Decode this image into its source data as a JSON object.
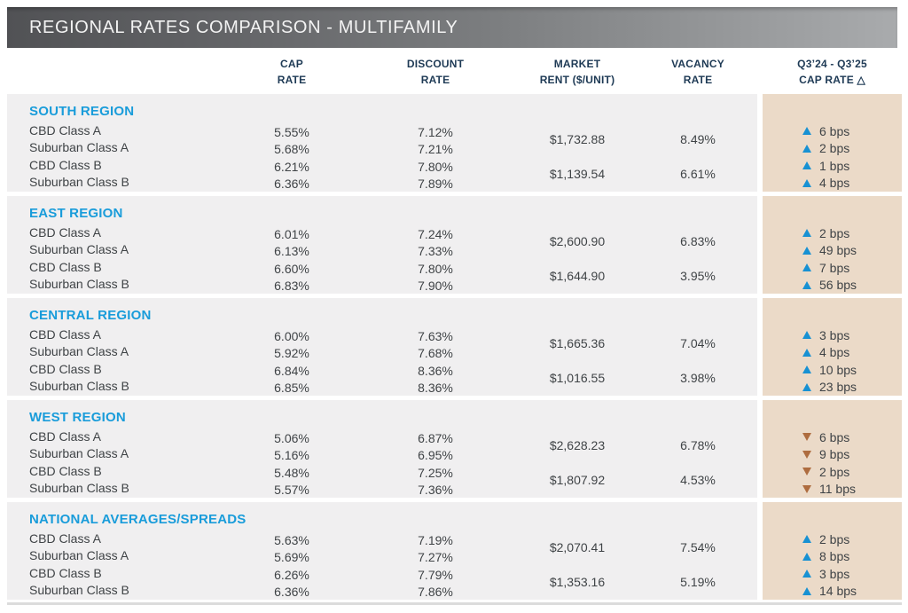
{
  "title": "REGIONAL RATES COMPARISON - MULTIFAMILY",
  "columns": [
    {
      "id": "cap",
      "line1": "CAP",
      "line2": "RATE"
    },
    {
      "id": "discount",
      "line1": "DISCOUNT",
      "line2": "RATE"
    },
    {
      "id": "rent",
      "line1": "MARKET",
      "line2": "RENT ($/UNIT)"
    },
    {
      "id": "vacancy",
      "line1": "VACANCY",
      "line2": "RATE"
    },
    {
      "id": "change",
      "line1": "Q3’24 - Q3’25",
      "line2": "CAP RATE",
      "delta_icon": "△"
    }
  ],
  "colors": {
    "accent_blue": "#199cda",
    "header_navy": "#1e3a55",
    "up_triangle": "#1791d3",
    "down_triangle": "#ae6c3f",
    "row_band": "#f0eff0",
    "change_band": "#ebdac8",
    "titlebar_left": "#515255",
    "titlebar_right": "#a9abad"
  },
  "sections": [
    {
      "region": "SOUTH REGION",
      "rows": [
        {
          "label": "CBD Class A",
          "cap": "5.55%",
          "discount": "7.12%",
          "dir": "up",
          "change": "6 bps"
        },
        {
          "label": "Suburban Class A",
          "cap": "5.68%",
          "discount": "7.21%",
          "dir": "up",
          "change": "2 bps"
        },
        {
          "label": "CBD Class B",
          "cap": "6.21%",
          "discount": "7.80%",
          "dir": "up",
          "change": "1 bps"
        },
        {
          "label": "Suburban Class B",
          "cap": "6.36%",
          "discount": "7.89%",
          "dir": "up",
          "change": "4 bps"
        }
      ],
      "rent_a": "$1,732.88",
      "vacancy_a": "8.49%",
      "rent_b": "$1,139.54",
      "vacancy_b": "6.61%"
    },
    {
      "region": "EAST REGION",
      "rows": [
        {
          "label": "CBD Class A",
          "cap": "6.01%",
          "discount": "7.24%",
          "dir": "up",
          "change": "2 bps"
        },
        {
          "label": "Suburban Class A",
          "cap": "6.13%",
          "discount": "7.33%",
          "dir": "up",
          "change": "49 bps"
        },
        {
          "label": "CBD Class B",
          "cap": "6.60%",
          "discount": "7.80%",
          "dir": "up",
          "change": "7 bps"
        },
        {
          "label": "Suburban Class B",
          "cap": "6.83%",
          "discount": "7.90%",
          "dir": "up",
          "change": "56 bps"
        }
      ],
      "rent_a": "$2,600.90",
      "vacancy_a": "6.83%",
      "rent_b": "$1,644.90",
      "vacancy_b": "3.95%"
    },
    {
      "region": "CENTRAL REGION",
      "rows": [
        {
          "label": "CBD Class A",
          "cap": "6.00%",
          "discount": "7.63%",
          "dir": "up",
          "change": "3 bps"
        },
        {
          "label": "Suburban Class A",
          "cap": "5.92%",
          "discount": "7.68%",
          "dir": "up",
          "change": "4 bps"
        },
        {
          "label": "CBD Class B",
          "cap": "6.84%",
          "discount": "8.36%",
          "dir": "up",
          "change": "10 bps"
        },
        {
          "label": "Suburban Class B",
          "cap": "6.85%",
          "discount": "8.36%",
          "dir": "up",
          "change": "23 bps"
        }
      ],
      "rent_a": "$1,665.36",
      "vacancy_a": "7.04%",
      "rent_b": "$1,016.55",
      "vacancy_b": "3.98%"
    },
    {
      "region": "WEST REGION",
      "rows": [
        {
          "label": "CBD Class A",
          "cap": "5.06%",
          "discount": "6.87%",
          "dir": "down",
          "change": "6 bps"
        },
        {
          "label": "Suburban Class A",
          "cap": "5.16%",
          "discount": "6.95%",
          "dir": "down",
          "change": "9 bps"
        },
        {
          "label": "CBD Class B",
          "cap": "5.48%",
          "discount": "7.25%",
          "dir": "down",
          "change": "2 bps"
        },
        {
          "label": "Suburban Class B",
          "cap": "5.57%",
          "discount": "7.36%",
          "dir": "down",
          "change": "11 bps"
        }
      ],
      "rent_a": "$2,628.23",
      "vacancy_a": "6.78%",
      "rent_b": "$1,807.92",
      "vacancy_b": "4.53%"
    },
    {
      "region": "NATIONAL AVERAGES/SPREADS",
      "rows": [
        {
          "label": "CBD Class A",
          "cap": "5.63%",
          "discount": "7.19%",
          "dir": "up",
          "change": "2 bps"
        },
        {
          "label": "Suburban Class A",
          "cap": "5.69%",
          "discount": "7.27%",
          "dir": "up",
          "change": "8 bps"
        },
        {
          "label": "CBD Class B",
          "cap": "6.26%",
          "discount": "7.79%",
          "dir": "up",
          "change": "3 bps"
        },
        {
          "label": "Suburban Class B",
          "cap": "6.36%",
          "discount": "7.86%",
          "dir": "up",
          "change": "14 bps"
        }
      ],
      "rent_a": "$2,070.41",
      "vacancy_a": "7.54%",
      "rent_b": "$1,353.16",
      "vacancy_b": "5.19%"
    }
  ]
}
